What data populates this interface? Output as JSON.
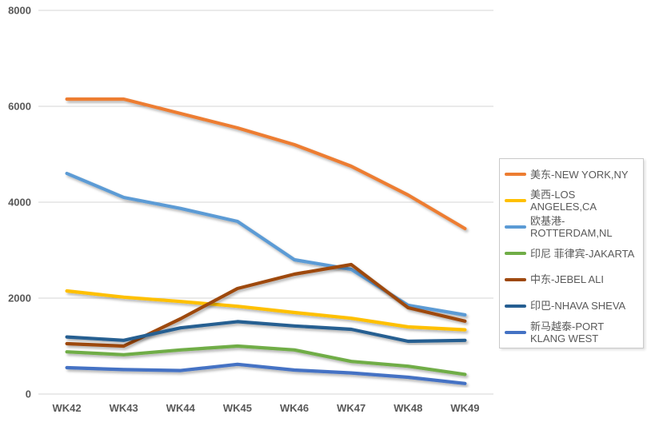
{
  "chart_data": {
    "type": "line",
    "title": "",
    "xlabel": "",
    "ylabel": "",
    "categories": [
      "WK42",
      "WK43",
      "WK44",
      "WK45",
      "WK46",
      "WK47",
      "WK48",
      "WK49"
    ],
    "y_axis": {
      "min": 0,
      "max": 8000,
      "tick_interval": 2000,
      "tick_labels": [
        "0",
        "2000",
        "4000",
        "6000",
        "8000"
      ]
    },
    "grid": "horizontal",
    "legend_position": "right",
    "series": [
      {
        "name": "美东-NEW YORK,NY",
        "color": "#ED7D31",
        "values": [
          6150,
          6150,
          5850,
          5550,
          5200,
          4750,
          4150,
          3450
        ]
      },
      {
        "name": "美西-LOS ANGELES,CA",
        "color": "#FFC000",
        "values": [
          2150,
          2020,
          1930,
          1830,
          1700,
          1580,
          1400,
          1340
        ]
      },
      {
        "name": "欧基港-ROTTERDAM,NL",
        "color": "#5B9BD5",
        "values": [
          4600,
          4100,
          3870,
          3600,
          2800,
          2600,
          1850,
          1650
        ]
      },
      {
        "name": "印尼 菲律宾-JAKARTA",
        "color": "#70AD47",
        "values": [
          880,
          820,
          920,
          1000,
          920,
          680,
          580,
          410
        ]
      },
      {
        "name": "中东-JEBEL ALI",
        "color": "#9E480E",
        "values": [
          1050,
          1000,
          1570,
          2200,
          2500,
          2700,
          1800,
          1520
        ]
      },
      {
        "name": "印巴-NHAVA SHEVA",
        "color": "#255E91",
        "values": [
          1190,
          1120,
          1380,
          1510,
          1420,
          1350,
          1100,
          1120
        ]
      },
      {
        "name": "新马越泰-PORT KLANG WEST",
        "color": "#4472C4",
        "values": [
          550,
          510,
          490,
          620,
          500,
          440,
          350,
          220
        ]
      }
    ]
  },
  "colors": {
    "background": "#FFFFFF",
    "gridline": "#D6D6D6",
    "axis_text": "#595959",
    "legend_border": "#C9C9C9"
  }
}
